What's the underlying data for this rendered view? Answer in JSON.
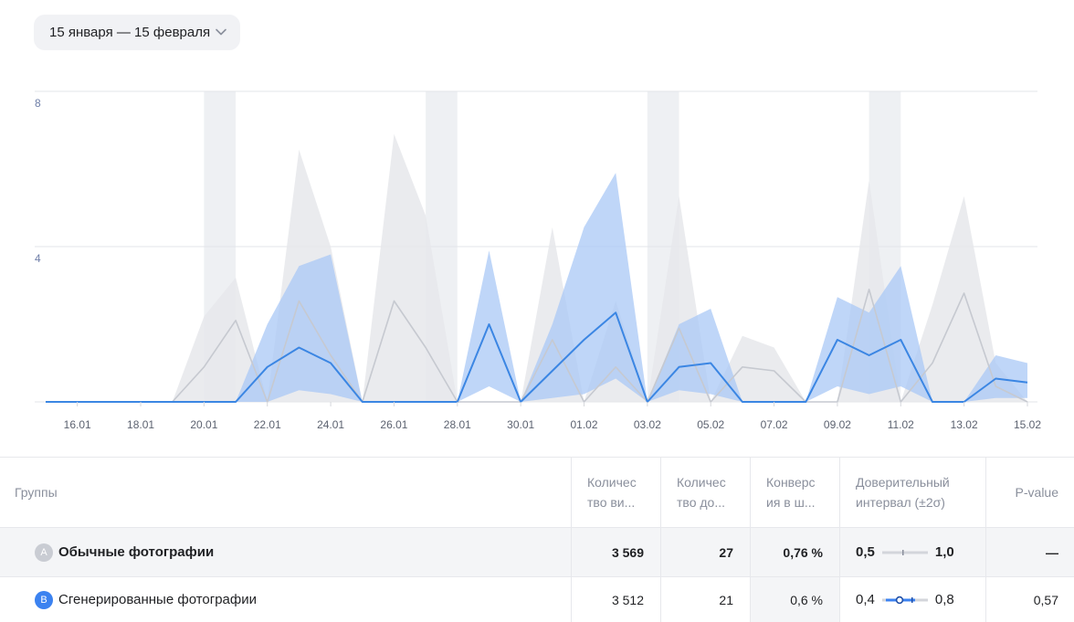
{
  "date_range": {
    "label": "15 января — 15 февраля"
  },
  "chart_data": {
    "type": "area",
    "ylim": [
      0,
      8
    ],
    "yticks": [
      {
        "value": 8,
        "label": "8"
      },
      {
        "value": 4,
        "label": "4"
      }
    ],
    "gridlines": [
      8,
      4
    ],
    "x": [
      "15.01",
      "16.01",
      "17.01",
      "18.01",
      "19.01",
      "20.01",
      "21.01",
      "22.01",
      "23.01",
      "24.01",
      "25.01",
      "26.01",
      "27.01",
      "28.01",
      "29.01",
      "30.01",
      "31.01",
      "01.02",
      "02.02",
      "03.02",
      "04.02",
      "05.02",
      "06.02",
      "07.02",
      "08.02",
      "09.02",
      "10.02",
      "11.02",
      "12.02",
      "13.02",
      "14.02",
      "15.02"
    ],
    "xtick_labels": [
      "16.01",
      "18.01",
      "20.01",
      "22.01",
      "24.01",
      "26.01",
      "28.01",
      "30.01",
      "01.02",
      "03.02",
      "05.02",
      "07.02",
      "09.02",
      "11.02",
      "13.02",
      "15.02"
    ],
    "weekend_bands": [
      [
        "20.01",
        "21.01"
      ],
      [
        "27.01",
        "28.01"
      ],
      [
        "03.02",
        "04.02"
      ],
      [
        "10.02",
        "11.02"
      ]
    ],
    "series": [
      {
        "name": "A",
        "color": "#c6c9d0",
        "band_color": "#e6e7eb",
        "values": [
          0,
          0,
          0,
          0,
          0,
          0.9,
          2.1,
          0,
          2.6,
          1.2,
          0,
          2.6,
          1.4,
          0,
          0,
          0,
          1.6,
          0,
          0.9,
          0,
          1.9,
          0,
          0.9,
          0.8,
          0,
          0,
          2.9,
          0,
          1.0,
          2.8,
          0.4,
          0
        ],
        "upper": [
          0,
          0,
          0,
          0,
          0,
          2.2,
          3.2,
          0,
          6.5,
          4.0,
          0,
          6.9,
          4.8,
          0,
          0,
          0,
          4.5,
          0,
          2.6,
          0,
          5.3,
          0,
          1.7,
          1.4,
          0,
          0,
          5.7,
          0,
          2.5,
          5.3,
          1.0,
          0
        ],
        "lower": [
          0,
          0,
          0,
          0,
          0,
          0,
          0,
          0,
          0,
          0,
          0,
          0,
          0,
          0,
          0,
          0,
          0,
          0,
          0,
          0,
          0,
          0,
          0,
          0,
          0,
          0,
          0,
          0,
          0,
          0,
          0,
          0
        ]
      },
      {
        "name": "B",
        "color": "#3b86e3",
        "band_color": "#a9c8f6",
        "values": [
          0,
          0,
          0,
          0,
          0,
          0,
          0,
          0.9,
          1.4,
          1.0,
          0,
          0,
          0,
          0,
          2.0,
          0,
          0.8,
          1.6,
          2.3,
          0,
          0.9,
          1.0,
          0,
          0,
          0,
          1.6,
          1.2,
          1.6,
          0,
          0,
          0.6,
          0.5
        ],
        "upper": [
          0,
          0,
          0,
          0,
          0,
          0,
          0,
          2.0,
          3.5,
          3.8,
          0,
          0,
          0,
          0,
          3.9,
          0,
          2.0,
          4.5,
          5.9,
          0,
          2.0,
          2.4,
          0,
          0,
          0,
          2.7,
          2.3,
          3.5,
          0,
          0,
          1.2,
          1.0
        ],
        "lower": [
          0,
          0,
          0,
          0,
          0,
          0,
          0,
          0,
          0.3,
          0.2,
          0,
          0,
          0,
          0,
          0.4,
          0,
          0.1,
          0.2,
          0.6,
          0,
          0.3,
          0.2,
          0,
          0,
          0,
          0.4,
          0.2,
          0.4,
          0,
          0,
          0.1,
          0.1
        ]
      }
    ]
  },
  "table": {
    "headers": {
      "groups": "Группы",
      "visits_l1": "Количес",
      "visits_l2": "тво ви...",
      "goals_l1": "Количес",
      "goals_l2": "тво до...",
      "conv_l1": "Конверс",
      "conv_l2": "ия в ш...",
      "ci_l1": "Доверительный",
      "ci_l2": "интервал (±2σ)",
      "pvalue": "P-value"
    },
    "rows": [
      {
        "badge": "A",
        "name": "Обычные фотографии",
        "visits": "3 569",
        "goals": "27",
        "conversion": "0,76 %",
        "ci_low": "0,5",
        "ci_high": "1,0",
        "pvalue": "—"
      },
      {
        "badge": "B",
        "name": "Сгенерированные фотографии",
        "visits": "3 512",
        "goals": "21",
        "conversion": "0,6 %",
        "ci_low": "0,4",
        "ci_high": "0,8",
        "pvalue": "0,57"
      }
    ]
  }
}
